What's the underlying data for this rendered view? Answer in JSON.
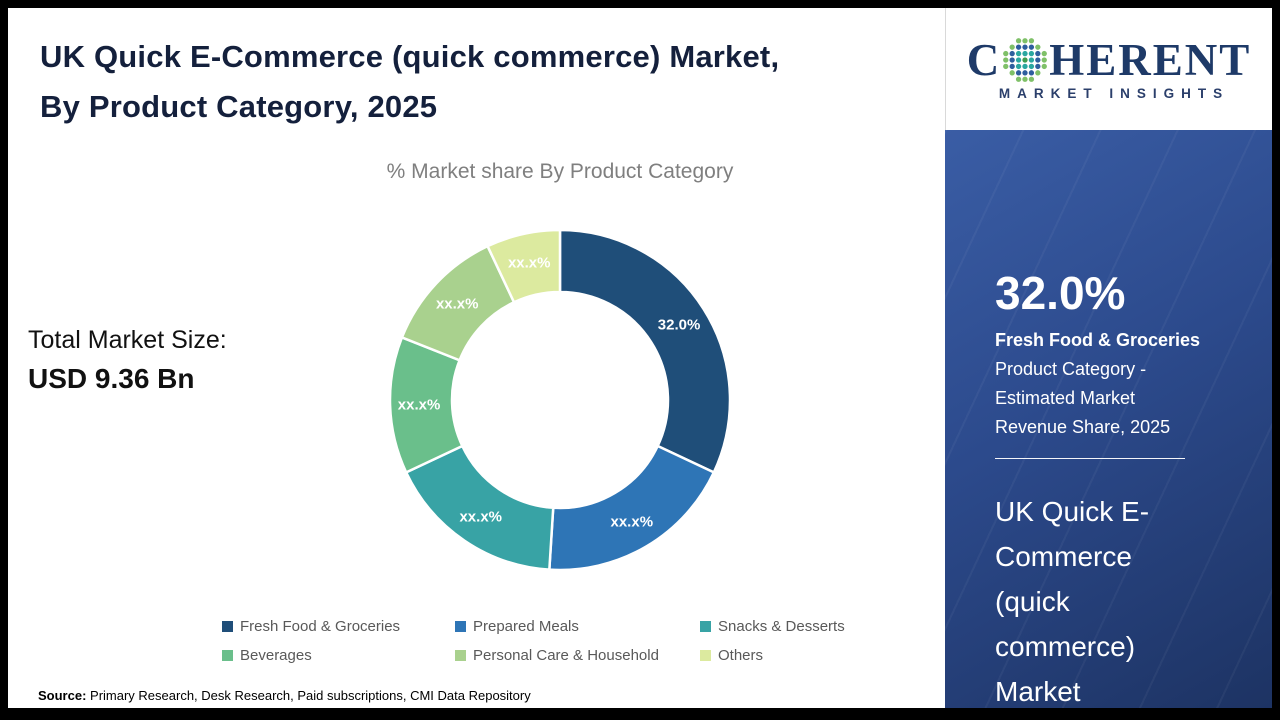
{
  "header": {
    "title_line1": "UK Quick E-Commerce (quick commerce) Market,",
    "title_line2": "By Product Category, 2025"
  },
  "chart_data": {
    "type": "pie",
    "subtype": "donut",
    "title": "% Market share By Product Category",
    "categories": [
      "Fresh Food & Groceries",
      "Prepared Meals",
      "Snacks & Desserts",
      "Beverages",
      "Personal Care & Household",
      "Others"
    ],
    "values": [
      32.0,
      19.0,
      17.0,
      13.0,
      12.0,
      7.0
    ],
    "value_note": "Only the Fresh Food & Groceries share (32.0%) is disclosed; remaining slice values are masked as xx.x% and estimated from arc lengths",
    "slice_labels": [
      "32.0%",
      "xx.x%",
      "xx.x%",
      "xx.x%",
      "xx.x%",
      "xx.x%"
    ],
    "colors": [
      "#1f4e79",
      "#2e75b6",
      "#38a3a5",
      "#6abf8b",
      "#a9d18e",
      "#dcea9f"
    ],
    "start_angle": 0,
    "direction": "clockwise",
    "legend_position": "bottom"
  },
  "total": {
    "label": "Total Market Size:",
    "value": "USD 9.36 Bn"
  },
  "source": {
    "prefix": "Source:",
    "text": " Primary Research, Desk Research, Paid subscriptions, CMI Data Repository"
  },
  "logo": {
    "letter_c": "C",
    "letters_rest": "HERENT",
    "subtitle": "MARKET INSIGHTS",
    "brand_navy": "#1e3a68",
    "globe_dot_colors": [
      "#3f9d4e",
      "#2aa7a0",
      "#2e5e9e",
      "#7fc068"
    ]
  },
  "side_panel": {
    "stat_value": "32.0%",
    "stat_category": "Fresh Food & Groceries",
    "stat_line1": "Product Category -",
    "stat_line2": "Estimated Market",
    "stat_line3": "Revenue Share, 2025",
    "market_name": "UK Quick E-Commerce (quick commerce) Market"
  }
}
